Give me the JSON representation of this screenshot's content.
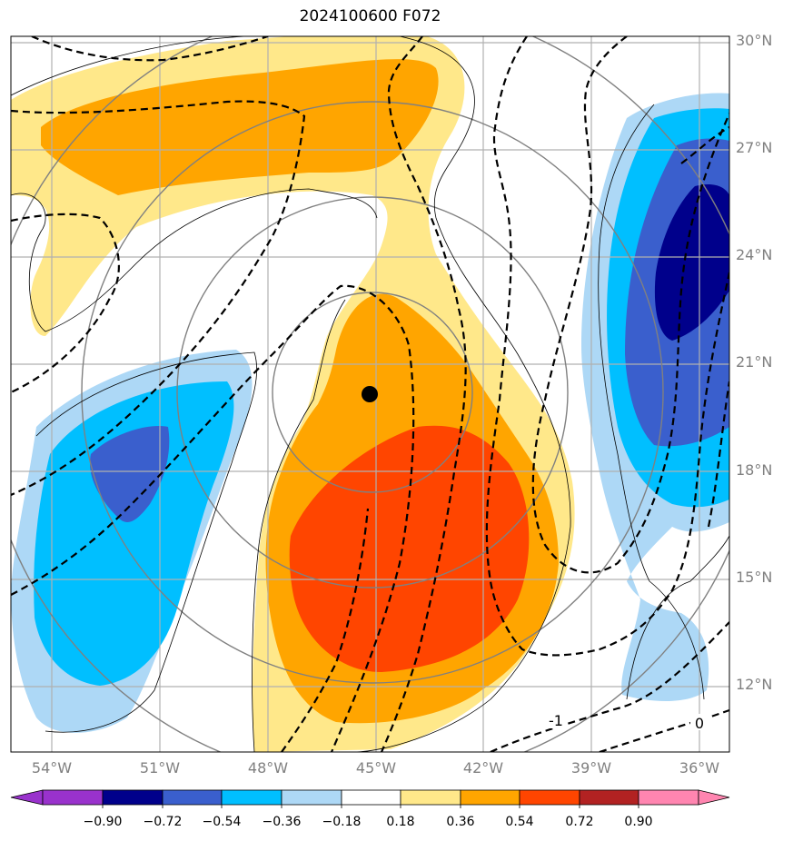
{
  "title": "2024100600 F072",
  "map": {
    "center_marker": {
      "lon": -45,
      "lat": 20.2
    },
    "lat_ticks": [
      "30°N",
      "27°N",
      "24°N",
      "21°N",
      "18°N",
      "15°N",
      "12°N"
    ],
    "lon_ticks": [
      "54°W",
      "51°W",
      "48°W",
      "45°W",
      "42°W",
      "39°W",
      "36°W"
    ],
    "contour_labels": [
      "-1",
      "0"
    ],
    "lon_range": [
      -55.1,
      -35.2
    ],
    "lat_range": [
      10.0,
      30.2
    ]
  },
  "colorbar": {
    "tick_labels": [
      "−0.90",
      "−0.72",
      "−0.54",
      "−0.36",
      "−0.18",
      "0.18",
      "0.36",
      "0.54",
      "0.72",
      "0.90"
    ],
    "colors": [
      "#9932cc",
      "#00008b",
      "#3a5fcd",
      "#00bfff",
      "#add8f6",
      "#ffffff",
      "#ffe88a",
      "#ffa500",
      "#ff4500",
      "#b22222",
      "#ff85b0"
    ]
  },
  "colors": {
    "grid": "#b0b0b0",
    "range_rings": "#808080",
    "coast": "#000000",
    "dashed_contours": "#000000"
  }
}
